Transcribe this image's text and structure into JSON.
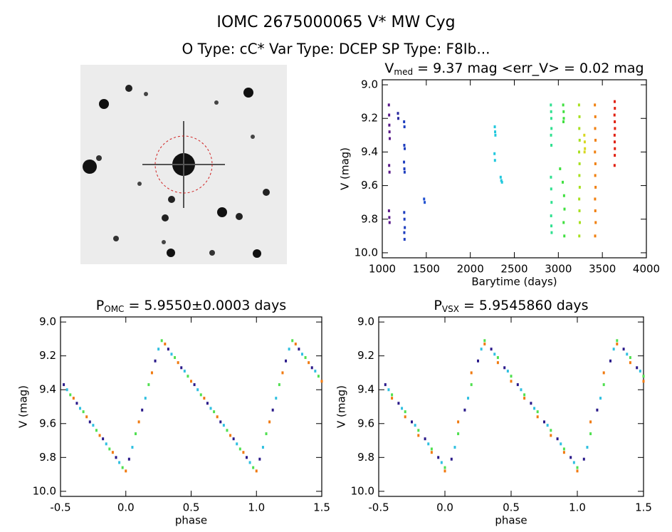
{
  "title": "IOMC 2675000065   V* MW Cyg",
  "subtitle": "O Type: cC*   Var Type: DCEP   SP Type: F8Ib...",
  "chart_data": [
    {
      "type": "scatter",
      "title": {
        "main": "V",
        "sub": "med",
        "rest": " = 9.37 mag <err_V> = 0.02 mag"
      },
      "xlabel": "Barytime (days)",
      "ylabel": "V (mag)",
      "xlim": [
        1000,
        4000
      ],
      "xticks": [
        1000,
        1500,
        2000,
        2500,
        3000,
        3500,
        4000
      ],
      "ylim": [
        10.03,
        8.97
      ],
      "yticks": [
        {
          "value": 9,
          "label": "9.0"
        },
        9.2,
        9.4,
        9.6,
        9.8,
        {
          "value": 10,
          "label": "10.0"
        }
      ],
      "series": [
        {
          "color": "#5a1a8a",
          "x": [
            1075,
            1078,
            1080,
            1082,
            1085,
            1078,
            1082,
            1076,
            1080,
            1083
          ],
          "values": [
            9.12,
            9.18,
            9.24,
            9.28,
            9.32,
            9.48,
            9.52,
            9.75,
            9.79,
            9.82
          ]
        },
        {
          "color": "#2a2aa0",
          "x": [
            1178,
            1182
          ],
          "values": [
            9.17,
            9.2
          ]
        },
        {
          "color": "#1f3fbf",
          "x": [
            1248,
            1252,
            1250,
            1255,
            1247,
            1251,
            1254,
            1249,
            1252,
            1256,
            1250,
            1253
          ],
          "values": [
            9.22,
            9.25,
            9.36,
            9.38,
            9.46,
            9.5,
            9.52,
            9.76,
            9.8,
            9.85,
            9.88,
            9.92
          ]
        },
        {
          "color": "#2050d0",
          "x": [
            1475,
            1482
          ],
          "values": [
            9.68,
            9.7
          ]
        },
        {
          "color": "#22c8dd",
          "x": [
            2278,
            2282,
            2285,
            2275,
            2280,
            2345,
            2352,
            2360
          ],
          "values": [
            9.25,
            9.28,
            9.3,
            9.41,
            9.45,
            9.55,
            9.57,
            9.58
          ]
        },
        {
          "color": "#30e090",
          "x": [
            2915,
            2918,
            2920,
            2922,
            2917,
            2921,
            2916,
            2919,
            2923,
            2918,
            2921,
            2924
          ],
          "values": [
            9.12,
            9.16,
            9.2,
            9.26,
            9.3,
            9.36,
            9.55,
            9.62,
            9.7,
            9.78,
            9.84,
            9.88
          ]
        },
        {
          "color": "#40e040",
          "x": [
            3055,
            3060,
            3062,
            3058,
            3020,
            3050,
            3065,
            3070,
            3060,
            3068
          ],
          "values": [
            9.12,
            9.16,
            9.2,
            9.22,
            9.5,
            9.58,
            9.66,
            9.74,
            9.82,
            9.9
          ]
        },
        {
          "color": "#a8e020",
          "x": [
            3235,
            3240,
            3238,
            3242,
            3236,
            3241,
            3239,
            3243,
            3237,
            3240,
            3244,
            3238
          ],
          "values": [
            9.12,
            9.19,
            9.26,
            9.33,
            9.4,
            9.47,
            9.54,
            9.61,
            9.68,
            9.75,
            9.82,
            9.9
          ]
        },
        {
          "color": "#d8d820",
          "x": [
            3295,
            3300,
            3302,
            3298
          ],
          "values": [
            9.3,
            9.34,
            9.38,
            9.4
          ]
        },
        {
          "color": "#f08010",
          "x": [
            3415,
            3420,
            3418,
            3422,
            3416,
            3421,
            3419,
            3423,
            3417,
            3420,
            3424,
            3418
          ],
          "values": [
            9.12,
            9.19,
            9.26,
            9.33,
            9.4,
            9.47,
            9.54,
            9.61,
            9.68,
            9.75,
            9.82,
            9.9
          ]
        },
        {
          "color": "#e02010",
          "x": [
            3640,
            3642,
            3638,
            3641,
            3643,
            3639,
            3640,
            3642,
            3641,
            3639
          ],
          "values": [
            9.1,
            9.14,
            9.18,
            9.22,
            9.26,
            9.3,
            9.34,
            9.38,
            9.42,
            9.48
          ]
        }
      ]
    },
    {
      "type": "scatter",
      "title": {
        "main": "P",
        "sub": "OMC",
        "rest": " = 5.9550±0.0003 days"
      },
      "xlabel": "phase",
      "ylabel": "V (mag)",
      "xlim": [
        -0.5,
        1.5
      ],
      "xticks": [
        -0.5,
        {
          "value": 0,
          "label": "0.0"
        },
        0.5,
        {
          "value": 1,
          "label": "1.0"
        },
        1.5
      ],
      "ylim": [
        10.03,
        8.97
      ],
      "yticks": [
        {
          "value": 9,
          "label": "9.0"
        },
        9.2,
        9.4,
        9.6,
        9.8,
        {
          "value": 10,
          "label": "10.0"
        }
      ],
      "series": [
        {
          "color": "#2a1a8a",
          "x": [
            -0.475,
            -0.375,
            -0.275,
            -0.175,
            -0.075,
            0.025,
            0.125,
            0.225,
            0.325,
            0.425,
            0.525,
            0.625,
            0.725,
            0.825,
            0.925,
            1.025,
            1.125,
            1.225,
            1.325,
            1.425
          ],
          "values": [
            9.37,
            9.48,
            9.59,
            9.69,
            9.8,
            9.81,
            9.52,
            9.23,
            9.16,
            9.27,
            9.37,
            9.48,
            9.59,
            9.69,
            9.8,
            9.81,
            9.52,
            9.23,
            9.16,
            9.27
          ]
        },
        {
          "color": "#30c0e0",
          "x": [
            -0.45,
            -0.35,
            -0.25,
            -0.15,
            -0.05,
            0.05,
            0.15,
            0.25,
            0.35,
            0.45,
            0.55,
            0.65,
            0.75,
            0.85,
            0.95,
            1.05,
            1.15,
            1.25,
            1.35,
            1.45
          ],
          "values": [
            9.4,
            9.51,
            9.61,
            9.72,
            9.83,
            9.74,
            9.45,
            9.16,
            9.19,
            9.29,
            9.4,
            9.51,
            9.61,
            9.72,
            9.83,
            9.74,
            9.45,
            9.16,
            9.19,
            9.29
          ]
        },
        {
          "color": "#50e050",
          "x": [
            -0.425,
            -0.325,
            -0.225,
            -0.125,
            -0.025,
            0.075,
            0.175,
            0.275,
            0.375,
            0.475,
            0.575,
            0.675,
            0.775,
            0.875,
            0.975,
            1.075,
            1.175,
            1.275,
            1.375,
            1.475
          ],
          "values": [
            9.43,
            9.53,
            9.64,
            9.75,
            9.86,
            9.66,
            9.37,
            9.11,
            9.21,
            9.32,
            9.43,
            9.53,
            9.64,
            9.75,
            9.86,
            9.66,
            9.37,
            9.11,
            9.21,
            9.32
          ]
        },
        {
          "color": "#f07a10",
          "x": [
            -0.4,
            -0.3,
            -0.2,
            -0.1,
            0,
            0.1,
            0.2,
            0.3,
            0.4,
            0.5,
            0.6,
            0.7,
            0.8,
            0.9,
            1,
            1.1,
            1.2,
            1.3,
            1.4,
            1.5
          ],
          "values": [
            9.45,
            9.56,
            9.67,
            9.77,
            9.88,
            9.59,
            9.3,
            9.13,
            9.24,
            9.35,
            9.45,
            9.56,
            9.67,
            9.77,
            9.88,
            9.59,
            9.3,
            9.13,
            9.24,
            9.35
          ]
        }
      ]
    },
    {
      "type": "scatter",
      "title": {
        "main": "P",
        "sub": "VSX",
        "rest": " = 5.9545860 days"
      },
      "xlabel": "phase",
      "ylabel": "V (mag)",
      "xlim": [
        -0.5,
        1.5
      ],
      "xticks": [
        -0.5,
        {
          "value": 0,
          "label": "0.0"
        },
        0.5,
        {
          "value": 1,
          "label": "1.0"
        },
        1.5
      ],
      "ylim": [
        10.03,
        8.97
      ],
      "yticks": [
        {
          "value": 9,
          "label": "9.0"
        },
        9.2,
        9.4,
        9.6,
        9.8,
        {
          "value": 10,
          "label": "10.0"
        }
      ],
      "series": [
        {
          "color": "#2a1a8a",
          "x": [
            -0.45,
            -0.35,
            -0.25,
            -0.15,
            -0.05,
            0.05,
            0.15,
            0.25,
            0.35,
            0.45,
            0.55,
            0.65,
            0.75,
            0.85,
            0.95,
            1.05,
            1.15,
            1.25,
            1.35,
            1.45
          ],
          "values": [
            9.37,
            9.48,
            9.59,
            9.69,
            9.8,
            9.81,
            9.52,
            9.23,
            9.16,
            9.27,
            9.37,
            9.48,
            9.59,
            9.69,
            9.8,
            9.81,
            9.52,
            9.23,
            9.16,
            9.27
          ]
        },
        {
          "color": "#30c0e0",
          "x": [
            -0.425,
            -0.325,
            -0.225,
            -0.125,
            -0.025,
            0.075,
            0.175,
            0.275,
            0.375,
            0.475,
            0.575,
            0.675,
            0.775,
            0.875,
            0.975,
            1.075,
            1.175,
            1.275,
            1.375,
            1.475
          ],
          "values": [
            9.4,
            9.51,
            9.61,
            9.72,
            9.83,
            9.74,
            9.45,
            9.16,
            9.19,
            9.29,
            9.4,
            9.51,
            9.61,
            9.72,
            9.83,
            9.74,
            9.45,
            9.16,
            9.19,
            9.29
          ]
        },
        {
          "color": "#50e050",
          "x": [
            -0.4,
            -0.3,
            -0.2,
            -0.1,
            0,
            0.1,
            0.2,
            0.3,
            0.4,
            0.5,
            0.6,
            0.7,
            0.8,
            0.9,
            1,
            1.1,
            1.2,
            1.3,
            1.4,
            1.5
          ],
          "values": [
            9.43,
            9.53,
            9.64,
            9.75,
            9.86,
            9.66,
            9.37,
            9.11,
            9.21,
            9.32,
            9.43,
            9.53,
            9.64,
            9.75,
            9.86,
            9.66,
            9.37,
            9.11,
            9.21,
            9.32
          ]
        },
        {
          "color": "#f07a10",
          "x": [
            -0.4,
            -0.3,
            -0.2,
            -0.1,
            0,
            0.1,
            0.2,
            0.3,
            0.4,
            0.5,
            0.6,
            0.7,
            0.8,
            0.9,
            1,
            1.1,
            1.2,
            1.3,
            1.4,
            1.5
          ],
          "values": [
            9.45,
            9.56,
            9.67,
            9.77,
            9.88,
            9.59,
            9.3,
            9.13,
            9.24,
            9.35,
            9.45,
            9.56,
            9.67,
            9.77,
            9.88,
            9.59,
            9.3,
            9.13,
            9.24,
            9.35
          ]
        }
      ]
    }
  ]
}
